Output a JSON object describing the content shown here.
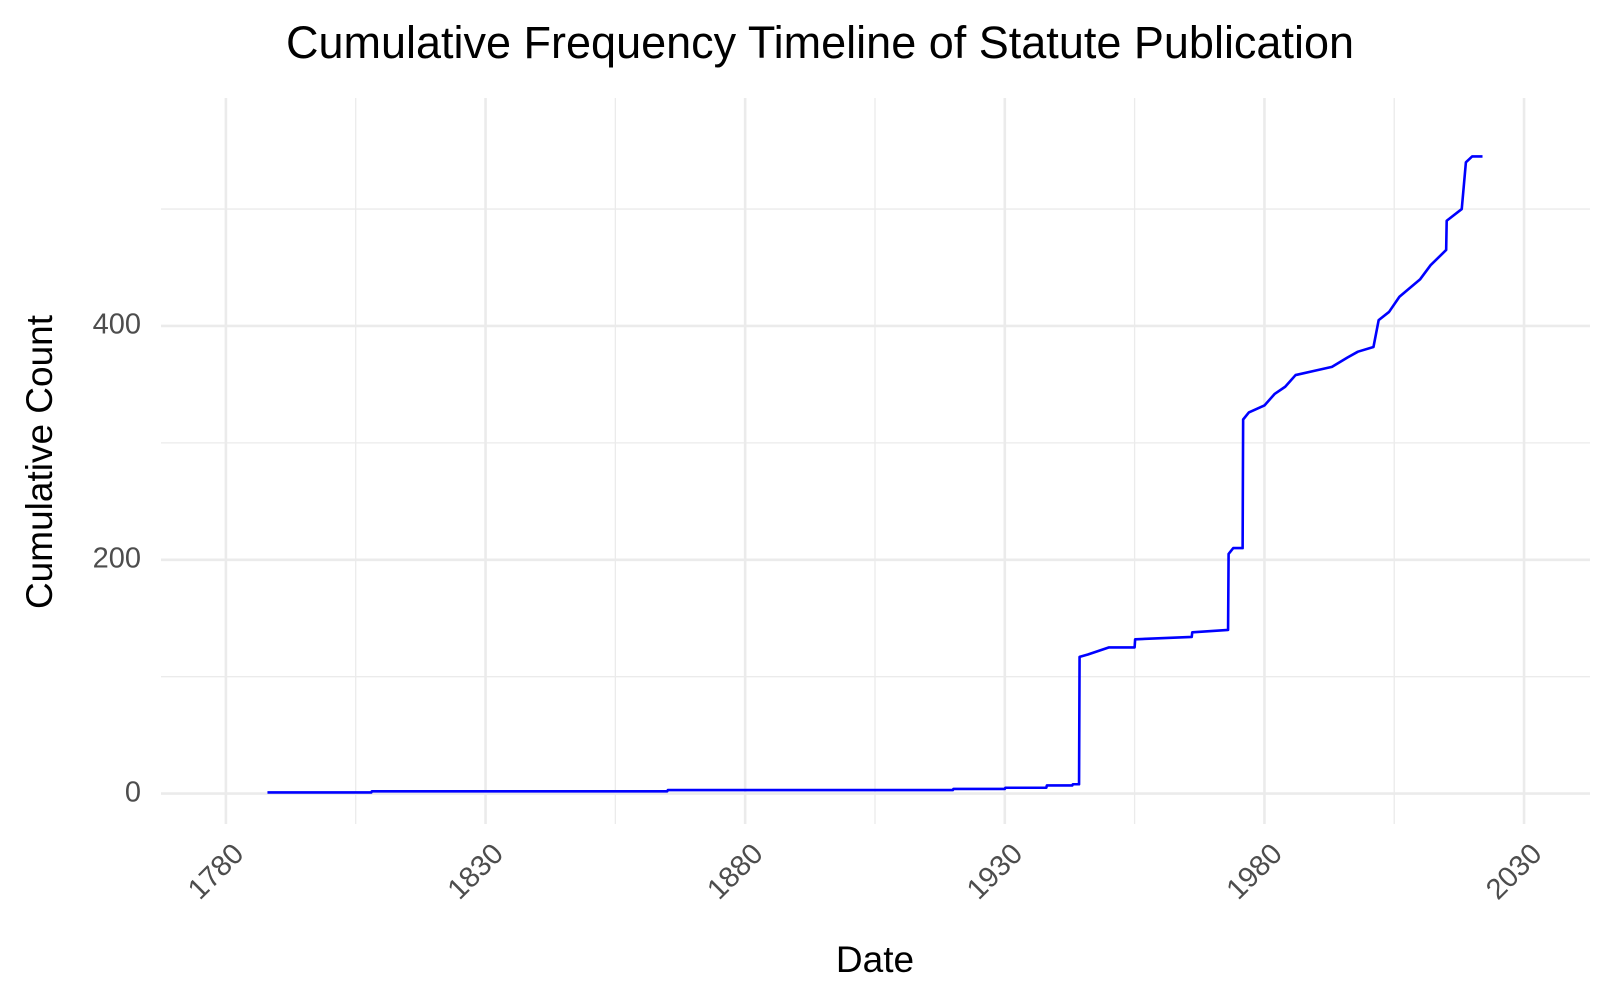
{
  "chart_data": {
    "type": "line",
    "title": "Cumulative Frequency Timeline of Statute Publication",
    "x_label": "Date",
    "y_label": "Cumulative Count",
    "x": [
      1788,
      1808,
      1808.1,
      1865,
      1865.1,
      1920,
      1920.1,
      1930,
      1930.1,
      1938,
      1938.1,
      1943,
      1943.1,
      1944.3,
      1944.4,
      1946,
      1948,
      1950,
      1955,
      1955.1,
      1966,
      1966.1,
      1973,
      1973.1,
      1974,
      1975.8,
      1975.9,
      1977,
      1980,
      1982,
      1984,
      1986,
      1990,
      1993,
      1996,
      1998,
      2001,
      2002,
      2004,
      2006,
      2010,
      2012,
      2015,
      2015.1,
      2018,
      2018.8,
      2020,
      2022
    ],
    "series": [
      {
        "name": "Cumulative Count",
        "color": "#0000ff",
        "values": [
          1,
          1,
          2,
          2,
          3,
          3,
          4,
          4,
          5,
          5,
          7,
          7,
          8,
          8,
          117,
          119,
          122,
          125,
          125,
          132,
          134,
          138,
          140,
          205,
          210,
          210,
          320,
          326,
          332,
          342,
          348,
          358,
          362,
          365,
          373,
          378,
          382,
          405,
          412,
          425,
          440,
          452,
          465,
          490,
          500,
          540,
          545,
          545
        ]
      }
    ],
    "xlim": [
      1767.5,
      2042.7
    ],
    "xticks": [
      1780,
      1830,
      1880,
      1930,
      1980,
      2030
    ],
    "ylim": [
      -26,
      595
    ],
    "yticks": [
      0,
      200,
      400
    ],
    "grid": true
  }
}
